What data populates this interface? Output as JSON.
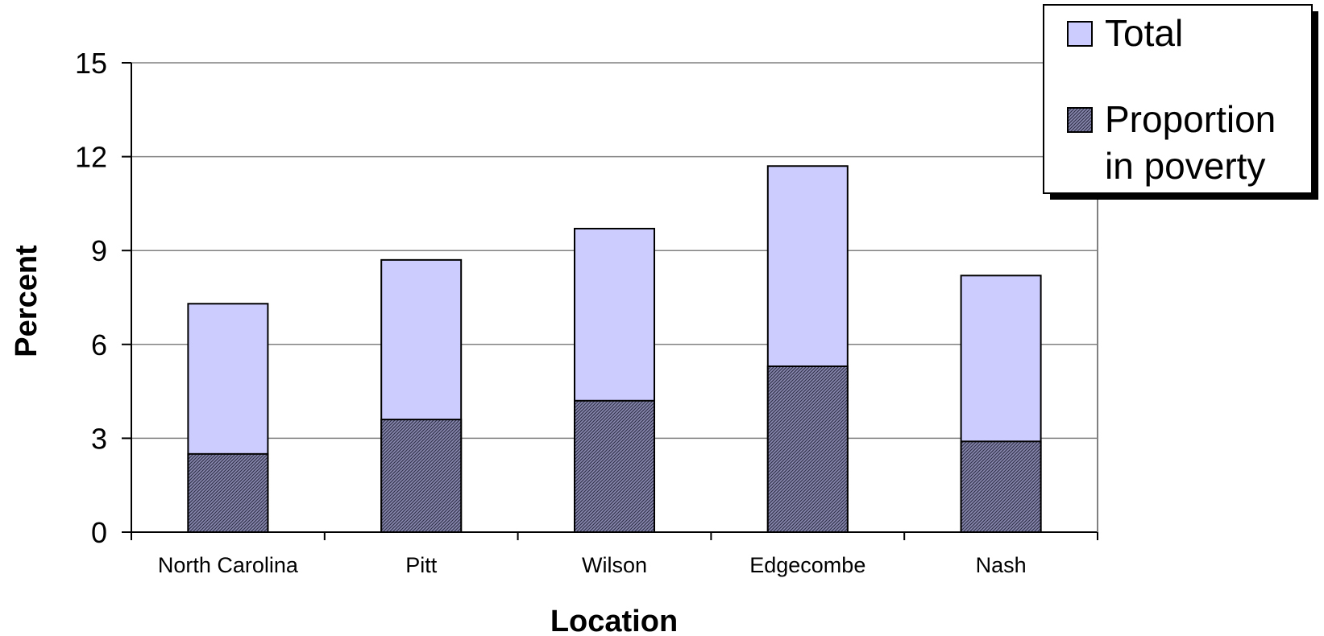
{
  "chart_data": {
    "type": "bar",
    "stacked": false,
    "overlapping": true,
    "title": "",
    "xlabel": "Location",
    "ylabel": "Percent",
    "ylim": [
      0,
      15
    ],
    "yticks": [
      0,
      3,
      6,
      9,
      12,
      15
    ],
    "grid": true,
    "legend_position": "top-right",
    "categories": [
      "North Carolina",
      "Pitt",
      "Wilson",
      "Edgecombe",
      "Nash"
    ],
    "series": [
      {
        "name": "Total",
        "values": [
          7.3,
          8.7,
          9.7,
          11.7,
          8.2
        ],
        "color": "#ccccff"
      },
      {
        "name": "Proportion in poverty",
        "values": [
          2.5,
          3.6,
          4.2,
          5.3,
          2.9
        ],
        "color": "#666699"
      }
    ],
    "legend": {
      "total_label": "Total",
      "poverty_label_line1": "Proportion",
      "poverty_label_line2": "in poverty"
    }
  }
}
